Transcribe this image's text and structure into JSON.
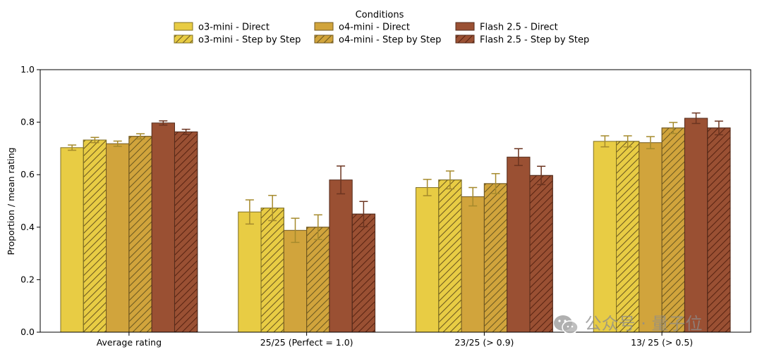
{
  "chart_data": {
    "type": "bar",
    "ylabel": "Proportion / mean rating",
    "ylim": [
      0.0,
      1.0
    ],
    "yticks": [
      "0.0",
      "0.2",
      "0.4",
      "0.6",
      "0.8",
      "1.0"
    ],
    "categories": [
      "Average rating",
      "25/25 (Perfect = 1.0)",
      "23/25 (> 0.9)",
      "13/ 25 (> 0.5)"
    ],
    "legend_title": "Conditions",
    "legend_position": "top-center",
    "series": [
      {
        "name": "o3-mini - Direct",
        "color": "#e8cc44",
        "hatch": false,
        "values": [
          0.703,
          0.458,
          0.551,
          0.727
        ],
        "err": [
          0.01,
          0.046,
          0.031,
          0.021
        ]
      },
      {
        "name": "o3-mini - Step by Step",
        "color": "#e8cc44",
        "hatch": true,
        "values": [
          0.732,
          0.473,
          0.58,
          0.727
        ],
        "err": [
          0.01,
          0.048,
          0.034,
          0.021
        ]
      },
      {
        "name": "o4-mini - Direct",
        "color": "#d1a43c",
        "hatch": false,
        "values": [
          0.718,
          0.388,
          0.516,
          0.722
        ],
        "err": [
          0.01,
          0.046,
          0.035,
          0.023
        ]
      },
      {
        "name": "o4-mini - Step by Step",
        "color": "#d1a43c",
        "hatch": true,
        "values": [
          0.746,
          0.4,
          0.566,
          0.778
        ],
        "err": [
          0.01,
          0.047,
          0.038,
          0.021
        ]
      },
      {
        "name": "Flash 2.5 - Direct",
        "color": "#9a5033",
        "hatch": false,
        "values": [
          0.797,
          0.58,
          0.667,
          0.815
        ],
        "err": [
          0.008,
          0.053,
          0.032,
          0.02
        ]
      },
      {
        "name": "Flash 2.5 - Step by Step",
        "color": "#9a5033",
        "hatch": true,
        "values": [
          0.763,
          0.45,
          0.597,
          0.778
        ],
        "err": [
          0.01,
          0.048,
          0.035,
          0.026
        ]
      }
    ],
    "grid": false
  },
  "watermark": {
    "text": "公众号 · 量子位",
    "icon": "wechat-icon"
  }
}
